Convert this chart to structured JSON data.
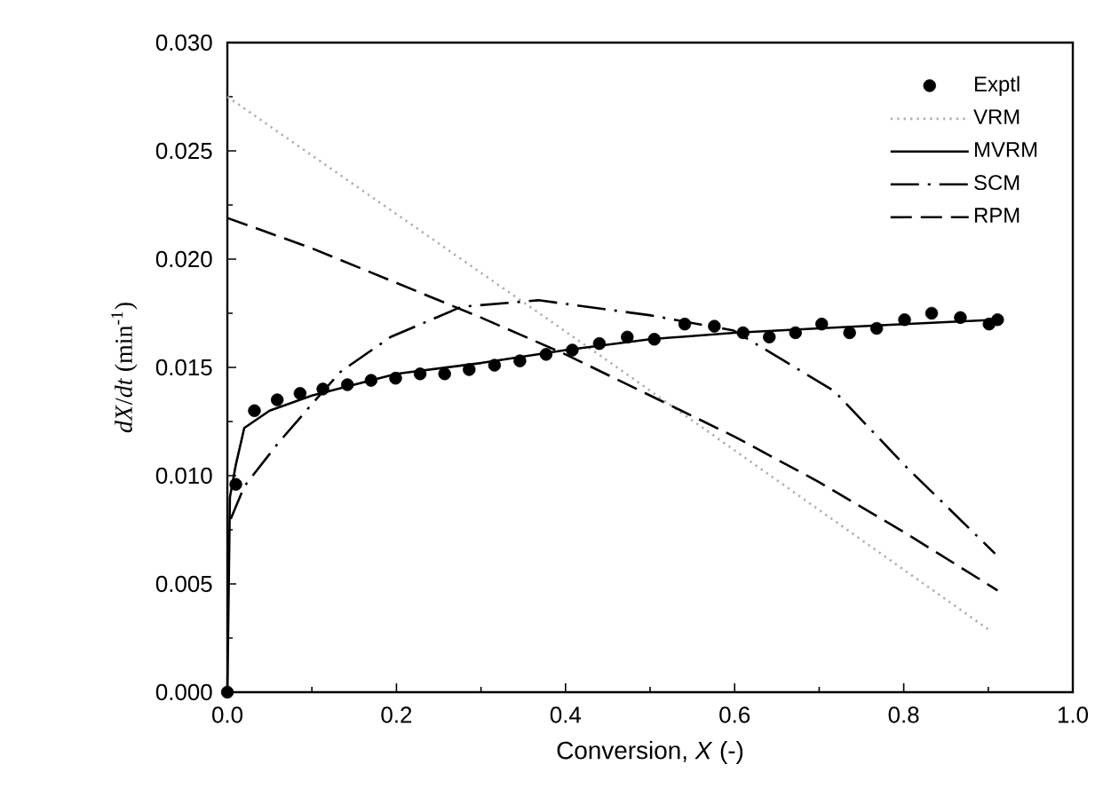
{
  "chart_data": {
    "type": "line",
    "xlabel": "Conversion, *X* (-)",
    "ylabel": "*dX*/*dt* (min$^{-1}$)",
    "xlim": [
      0,
      1
    ],
    "ylim": [
      0,
      0.03
    ],
    "xticks": [
      {
        "value": 0,
        "label": "0.0"
      },
      0.2,
      0.4,
      0.6,
      0.8,
      {
        "value": 1,
        "label": "1.0"
      }
    ],
    "yticks": [
      {
        "value": 0,
        "label": "0.000"
      },
      0.005,
      {
        "value": 0.01,
        "label": "0.010"
      },
      0.015,
      {
        "value": 0.02,
        "label": "0.020"
      },
      0.025,
      {
        "value": 0.03,
        "label": "0.030"
      }
    ],
    "grid": false,
    "legend": "top right",
    "series": [
      {
        "name": "Exptl",
        "type": "scatter",
        "color": "#000000",
        "x": [
          0,
          0.01,
          0.032,
          0.059,
          0.086,
          0.113,
          0.142,
          0.17,
          0.199,
          0.228,
          0.257,
          0.286,
          0.316,
          0.346,
          0.377,
          0.408,
          0.44,
          0.473,
          0.505,
          0.541,
          0.576,
          0.61,
          0.641,
          0.672,
          0.703,
          0.736,
          0.768,
          0.801,
          0.833,
          0.867,
          0.901,
          0.911
        ],
        "values": [
          0,
          0.0096,
          0.013,
          0.0135,
          0.0138,
          0.014,
          0.0142,
          0.0144,
          0.0145,
          0.0147,
          0.0147,
          0.0149,
          0.0151,
          0.0153,
          0.0156,
          0.0158,
          0.0161,
          0.0164,
          0.0163,
          0.017,
          0.0169,
          0.0166,
          0.0164,
          0.0166,
          0.017,
          0.0166,
          0.0168,
          0.0172,
          0.0175,
          0.0173,
          0.017,
          0.0172
        ]
      },
      {
        "name": "VRM",
        "line_style": "dotted",
        "color": "#b0b0b0",
        "x": [
          0,
          0.45,
          0.9
        ],
        "values": [
          0.0275,
          0.0153,
          0.0029
        ]
      },
      {
        "name": "MVRM",
        "line_style": "solid",
        "color": "#000000",
        "x": [
          0,
          0.003,
          0.01,
          0.02,
          0.05,
          0.1,
          0.2,
          0.3,
          0.4,
          0.5,
          0.6,
          0.7,
          0.8,
          0.91
        ],
        "values": [
          0,
          0.009,
          0.0105,
          0.0122,
          0.013,
          0.0137,
          0.0147,
          0.0152,
          0.0158,
          0.0163,
          0.0166,
          0.0168,
          0.017,
          0.0172
        ]
      },
      {
        "name": "SCM",
        "line_style": "dashdot",
        "color": "#000000",
        "x": [
          0.004,
          0.02,
          0.06,
          0.1,
          0.134,
          0.193,
          0.277,
          0.368,
          0.501,
          0.599,
          0.718,
          0.803,
          0.908
        ],
        "values": [
          0.008,
          0.0095,
          0.0115,
          0.0133,
          0.0148,
          0.0164,
          0.0178,
          0.0181,
          0.0174,
          0.0167,
          0.0139,
          0.0104,
          0.0064
        ]
      },
      {
        "name": "RPM",
        "line_style": "dashed",
        "color": "#000000",
        "x": [
          0,
          0.1,
          0.2,
          0.3,
          0.4,
          0.5,
          0.6,
          0.7,
          0.8,
          0.911
        ],
        "values": [
          0.0219,
          0.0205,
          0.0189,
          0.0173,
          0.0156,
          0.0137,
          0.0118,
          0.0097,
          0.0074,
          0.0047
        ]
      }
    ]
  }
}
